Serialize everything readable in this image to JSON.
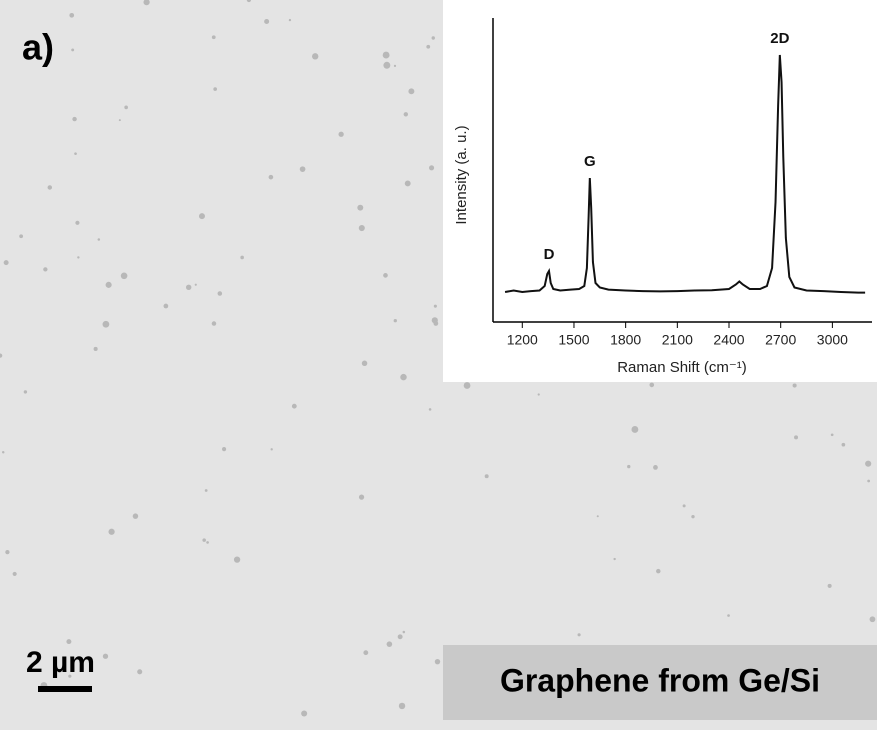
{
  "panel_label": "a)",
  "scale_bar": "2 µm",
  "caption": "Graphene from Ge/Si",
  "chart_data": {
    "type": "line",
    "x_label": "Raman Shift (cm⁻¹)",
    "y_label": "Intensity (a. u.)",
    "color": "#111111",
    "xlim": [
      1030,
      3230
    ],
    "ylim": [
      0,
      100
    ],
    "xticks": [
      1200,
      1500,
      1800,
      2100,
      2400,
      2700,
      3000
    ],
    "annotations": [
      {
        "text": "D",
        "x": 1355
      },
      {
        "text": "G",
        "x": 1592
      },
      {
        "text": "2D",
        "x": 2695
      }
    ],
    "x": [
      1100,
      1150,
      1200,
      1250,
      1300,
      1330,
      1345,
      1355,
      1365,
      1380,
      1420,
      1480,
      1530,
      1560,
      1575,
      1585,
      1592,
      1600,
      1610,
      1625,
      1650,
      1700,
      1800,
      1900,
      2000,
      2100,
      2200,
      2300,
      2400,
      2440,
      2460,
      2480,
      2520,
      2580,
      2620,
      2650,
      2670,
      2685,
      2695,
      2705,
      2715,
      2730,
      2750,
      2780,
      2850,
      2950,
      3050,
      3150,
      3190
    ],
    "values": [
      10,
      10.5,
      10,
      10.3,
      10.5,
      12,
      16,
      17,
      13,
      11,
      10.5,
      10.8,
      11,
      12,
      18,
      35,
      48,
      38,
      20,
      13,
      11.5,
      10.8,
      10.5,
      10.3,
      10.2,
      10.3,
      10.5,
      10.6,
      11,
      12.5,
      13.5,
      12.5,
      11,
      11,
      12,
      18,
      40,
      72,
      89,
      80,
      55,
      28,
      15,
      11.5,
      10.5,
      10.3,
      10,
      9.8,
      9.8
    ]
  }
}
